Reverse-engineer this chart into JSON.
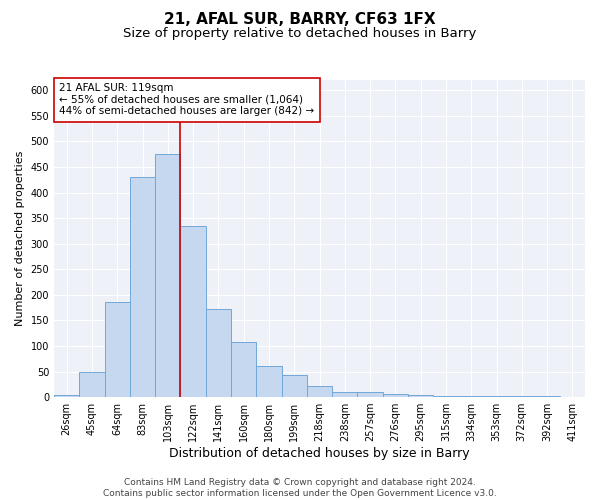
{
  "title": "21, AFAL SUR, BARRY, CF63 1FX",
  "subtitle": "Size of property relative to detached houses in Barry",
  "xlabel": "Distribution of detached houses by size in Barry",
  "ylabel": "Number of detached properties",
  "categories": [
    "26sqm",
    "45sqm",
    "64sqm",
    "83sqm",
    "103sqm",
    "122sqm",
    "141sqm",
    "160sqm",
    "180sqm",
    "199sqm",
    "218sqm",
    "238sqm",
    "257sqm",
    "276sqm",
    "295sqm",
    "315sqm",
    "334sqm",
    "353sqm",
    "372sqm",
    "392sqm",
    "411sqm"
  ],
  "values": [
    5,
    50,
    185,
    430,
    475,
    335,
    172,
    107,
    60,
    43,
    22,
    10,
    10,
    7,
    5,
    3,
    2,
    2,
    2,
    2,
    1
  ],
  "bar_color": "#c5d8f0",
  "bar_edgecolor": "#6fa8d8",
  "bar_linewidth": 0.7,
  "vline_x": 4.5,
  "vline_color": "#cc0000",
  "annotation_text": "21 AFAL SUR: 119sqm\n← 55% of detached houses are smaller (1,064)\n44% of semi-detached houses are larger (842) →",
  "annotation_box_color": "#ffffff",
  "annotation_box_edgecolor": "#cc0000",
  "ylim": [
    0,
    620
  ],
  "yticks": [
    0,
    50,
    100,
    150,
    200,
    250,
    300,
    350,
    400,
    450,
    500,
    550,
    600
  ],
  "footnote": "Contains HM Land Registry data © Crown copyright and database right 2024.\nContains public sector information licensed under the Open Government Licence v3.0.",
  "background_color": "#eef2f8",
  "grid_color": "#ffffff",
  "title_fontsize": 11,
  "subtitle_fontsize": 9.5,
  "xlabel_fontsize": 9,
  "ylabel_fontsize": 8,
  "tick_fontsize": 7,
  "annotation_fontsize": 7.5,
  "footnote_fontsize": 6.5
}
